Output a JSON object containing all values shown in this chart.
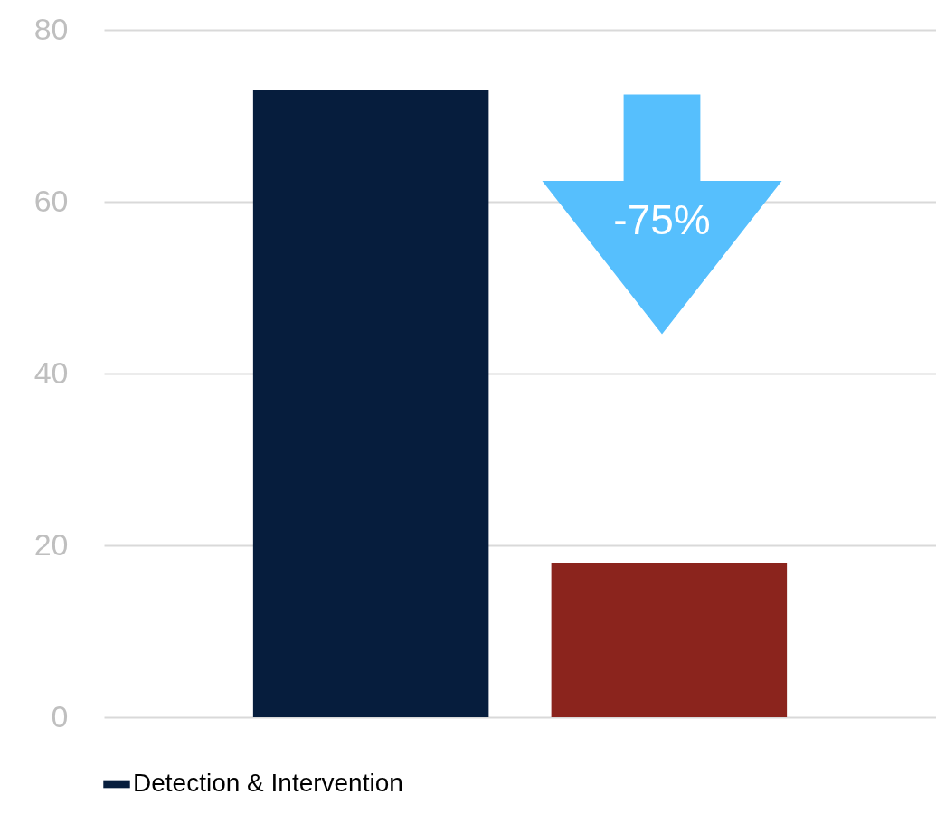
{
  "chart_data": {
    "type": "bar",
    "categories": [
      null,
      null
    ],
    "series": [
      {
        "name": "Detection & Intervention",
        "color": "#061d3d",
        "values": [
          73,
          null
        ]
      },
      {
        "color": "#8b241d",
        "values": [
          null,
          18
        ]
      }
    ],
    "ylim": [
      0,
      80
    ],
    "yticks": [
      0,
      20,
      40,
      60,
      80
    ],
    "grid": "y",
    "legend": "bottom",
    "annotations": [
      "-75%"
    ]
  }
}
